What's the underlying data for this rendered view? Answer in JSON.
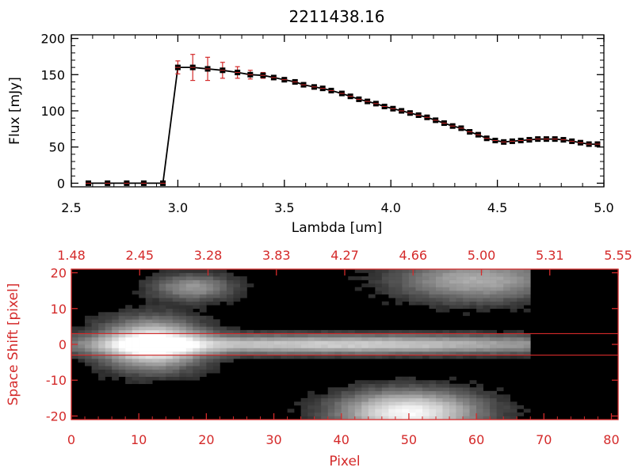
{
  "chart_data": [
    {
      "type": "line",
      "title": "2211438.16",
      "xlabel": "Lambda [um]",
      "ylabel": "Flux [mJy]",
      "xlim": [
        2.5,
        5.0
      ],
      "ylim": [
        -5,
        205
      ],
      "x_ticks": [
        "2.5",
        "3.0",
        "3.5",
        "4.0",
        "4.5",
        "5.0"
      ],
      "y_ticks": [
        "0",
        "50",
        "100",
        "150",
        "200"
      ],
      "colors": {
        "line": "#000000",
        "marker": "#000000",
        "error_bar": "#d42a2a"
      },
      "series": [
        {
          "x": [
            2.58,
            2.67,
            2.76,
            2.84,
            2.93,
            3.0,
            3.07,
            3.14,
            3.21,
            3.28,
            3.34,
            3.4,
            3.45,
            3.5,
            3.55,
            3.59,
            3.64,
            3.68,
            3.72,
            3.77,
            3.81,
            3.85,
            3.89,
            3.93,
            3.97,
            4.01,
            4.05,
            4.09,
            4.13,
            4.17,
            4.21,
            4.25,
            4.29,
            4.33,
            4.37,
            4.41,
            4.45,
            4.49,
            4.53,
            4.57,
            4.61,
            4.65,
            4.69,
            4.73,
            4.77,
            4.81,
            4.85,
            4.89,
            4.93,
            4.97
          ],
          "y": [
            0,
            0,
            0,
            0,
            0,
            160,
            160,
            158,
            156,
            153,
            150,
            149,
            146,
            143,
            140,
            136,
            133,
            131,
            128,
            124,
            120,
            116,
            113,
            110,
            106,
            103,
            100,
            97,
            94,
            91,
            87,
            83,
            79,
            76,
            71,
            67,
            62,
            59,
            57,
            58,
            59,
            60,
            61,
            61,
            61,
            60,
            58,
            56,
            54,
            54
          ],
          "yerr": [
            2,
            2,
            2,
            2,
            2,
            9,
            18,
            16,
            11,
            8,
            6,
            4,
            3,
            3,
            3,
            3,
            3,
            3,
            3,
            3,
            3,
            3,
            3,
            3,
            3,
            3,
            3,
            3,
            3,
            3,
            3,
            3,
            3,
            3,
            3,
            3,
            3,
            3,
            3,
            3,
            3,
            3,
            3,
            3,
            3,
            3,
            3,
            3,
            3,
            3
          ]
        }
      ]
    },
    {
      "type": "heatmap",
      "xlabel": "Pixel",
      "ylabel": "Space Shift [pixel]",
      "xlim": [
        0,
        81
      ],
      "ylim": [
        -21,
        21
      ],
      "x_ticks": [
        "0",
        "10",
        "20",
        "30",
        "40",
        "50",
        "60",
        "70",
        "80"
      ],
      "y_ticks": [
        "20",
        "10",
        "0",
        "-10",
        "-20"
      ],
      "top_axis_ticks": [
        "1.48",
        "2.45",
        "3.28",
        "3.83",
        "4.27",
        "4.66",
        "5.00",
        "5.31",
        "5.55"
      ],
      "extraction_window": [
        -3,
        3
      ],
      "colors": {
        "axes": "#d42a2a",
        "window_lines": "#d42a2a",
        "colormap": "grayscale"
      },
      "sources": [
        {
          "x": 12,
          "y": 0,
          "peak": 1.0,
          "sx": 5,
          "sy": 4.5
        },
        {
          "x": 40,
          "y": 0,
          "peak": 0.72,
          "sx": 28,
          "sy": 1.8
        },
        {
          "x": 18,
          "y": 16,
          "peak": 0.45,
          "sx": 4,
          "sy": 2.5
        },
        {
          "x": 50,
          "y": -19,
          "peak": 0.95,
          "sx": 7,
          "sy": 4
        },
        {
          "x": 60,
          "y": 18,
          "peak": 0.55,
          "sx": 8,
          "sy": 4
        }
      ],
      "data_columns": 68
    }
  ]
}
